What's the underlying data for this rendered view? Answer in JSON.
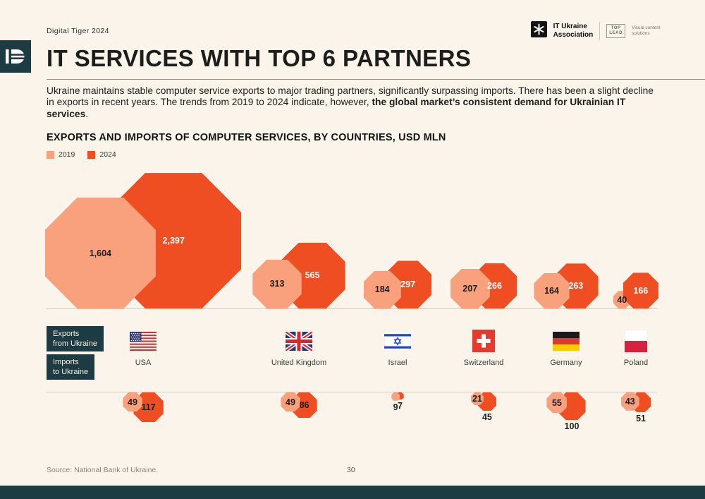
{
  "page": {
    "header_label": "Digital Tiger 2024",
    "source": "Source: National Bank of Ukraine.",
    "page_number": "30",
    "background_color": "#FAF4EA",
    "accent_navy": "#1C3B43"
  },
  "logos": {
    "ita_line1": "IT Ukraine",
    "ita_line2": "Association",
    "toplead_line1": "TOP",
    "toplead_line2": "LEAD",
    "toplead_desc": "Visual content solutions"
  },
  "title": "IT SERVICES WITH TOP 6 PARTNERS",
  "intro": {
    "normal": "Ukraine maintains stable computer service exports to major trading partners, significantly surpassing imports. There has been a slight decline in exports in recent years. The trends from 2019 to 2024 indicate, however, ",
    "bold": "the global market’s consistent demand for Ukrainian IT services",
    "tail": "."
  },
  "chart_data": {
    "type": "bar",
    "variant": "proportional-area-octagons",
    "title": "EXPORTS AND IMPORTS OF COMPUTER SERVICES, BY COUNTRIES, USD MLN",
    "unit": "USD MLN",
    "legend_position": "top-left",
    "legend": [
      {
        "label": "2019",
        "color": "#F9A07C"
      },
      {
        "label": "2024",
        "color": "#EF4E22"
      }
    ],
    "rows": [
      {
        "line1": "Exports",
        "line2": "from Ukraine"
      },
      {
        "line1": "Imports",
        "line2": "to Ukraine"
      }
    ],
    "categories": [
      "USA",
      "United Kingdom",
      "Israel",
      "Switzerland",
      "Germany",
      "Poland"
    ],
    "series": [
      {
        "name": "Exports from Ukraine 2019",
        "values": [
          1604,
          313,
          184,
          207,
          164,
          40
        ]
      },
      {
        "name": "Exports from Ukraine 2024",
        "values": [
          2397,
          565,
          297,
          266,
          263,
          166
        ]
      },
      {
        "name": "Imports to Ukraine 2019",
        "values": [
          49,
          49,
          9,
          21,
          55,
          43
        ]
      },
      {
        "name": "Imports to Ukraine 2024",
        "values": [
          117,
          86,
          7,
          45,
          100,
          51
        ]
      }
    ],
    "countries": [
      {
        "name": "USA",
        "flag": "usa",
        "front": "2019",
        "exp2019": {
          "value": 1604,
          "label": "1,604",
          "label_pos": "inside",
          "label_color": "dark"
        },
        "exp2024": {
          "value": 2397,
          "label": "2,397",
          "label_pos": "inside",
          "label_color": "white"
        },
        "imp2019": {
          "value": 49,
          "label": "49",
          "label_pos": "inside",
          "label_color": "dark"
        },
        "imp2024": {
          "value": 117,
          "label": "117",
          "label_pos": "inside",
          "label_color": "dark"
        }
      },
      {
        "name": "United Kingdom",
        "flag": "uk",
        "front": "2019",
        "exp2019": {
          "value": 313,
          "label": "313",
          "label_pos": "inside",
          "label_color": "dark"
        },
        "exp2024": {
          "value": 565,
          "label": "565",
          "label_pos": "inside",
          "label_color": "white"
        },
        "imp2019": {
          "value": 49,
          "label": "49",
          "label_pos": "inside",
          "label_color": "dark"
        },
        "imp2024": {
          "value": 86,
          "label": "86",
          "label_pos": "inside",
          "label_color": "dark"
        }
      },
      {
        "name": "Israel",
        "flag": "israel",
        "front": "2019",
        "exp2019": {
          "value": 184,
          "label": "184",
          "label_pos": "inside",
          "label_color": "dark"
        },
        "exp2024": {
          "value": 297,
          "label": "297",
          "label_pos": "inside",
          "label_color": "white"
        },
        "imp2019": {
          "value": 9,
          "label": "9",
          "label_pos": "below",
          "label_color": "dark"
        },
        "imp2024": {
          "value": 7,
          "label": "7",
          "label_pos": "below",
          "label_color": "dark"
        }
      },
      {
        "name": "Switzerland",
        "flag": "switzerland",
        "front": "2019",
        "exp2019": {
          "value": 207,
          "label": "207",
          "label_pos": "inside",
          "label_color": "dark"
        },
        "exp2024": {
          "value": 266,
          "label": "266",
          "label_pos": "inside",
          "label_color": "white"
        },
        "imp2019": {
          "value": 21,
          "label": "21",
          "label_pos": "inside",
          "label_color": "dark"
        },
        "imp2024": {
          "value": 45,
          "label": "45",
          "label_pos": "below",
          "label_color": "dark"
        }
      },
      {
        "name": "Germany",
        "flag": "germany",
        "front": "2019",
        "exp2019": {
          "value": 164,
          "label": "164",
          "label_pos": "inside",
          "label_color": "dark"
        },
        "exp2024": {
          "value": 263,
          "label": "263",
          "label_pos": "inside",
          "label_color": "white"
        },
        "imp2019": {
          "value": 55,
          "label": "55",
          "label_pos": "inside",
          "label_color": "dark"
        },
        "imp2024": {
          "value": 100,
          "label": "100",
          "label_pos": "below",
          "label_color": "dark"
        }
      },
      {
        "name": "Poland",
        "flag": "poland",
        "front": "2024",
        "exp2019": {
          "value": 40,
          "label": "40",
          "label_pos": "inside",
          "label_color": "dark"
        },
        "exp2024": {
          "value": 166,
          "label": "166",
          "label_pos": "inside",
          "label_color": "white"
        },
        "imp2019": {
          "value": 43,
          "label": "43",
          "label_pos": "inside",
          "label_color": "dark"
        },
        "imp2024": {
          "value": 51,
          "label": "51",
          "label_pos": "below",
          "label_color": "dark"
        }
      }
    ]
  }
}
